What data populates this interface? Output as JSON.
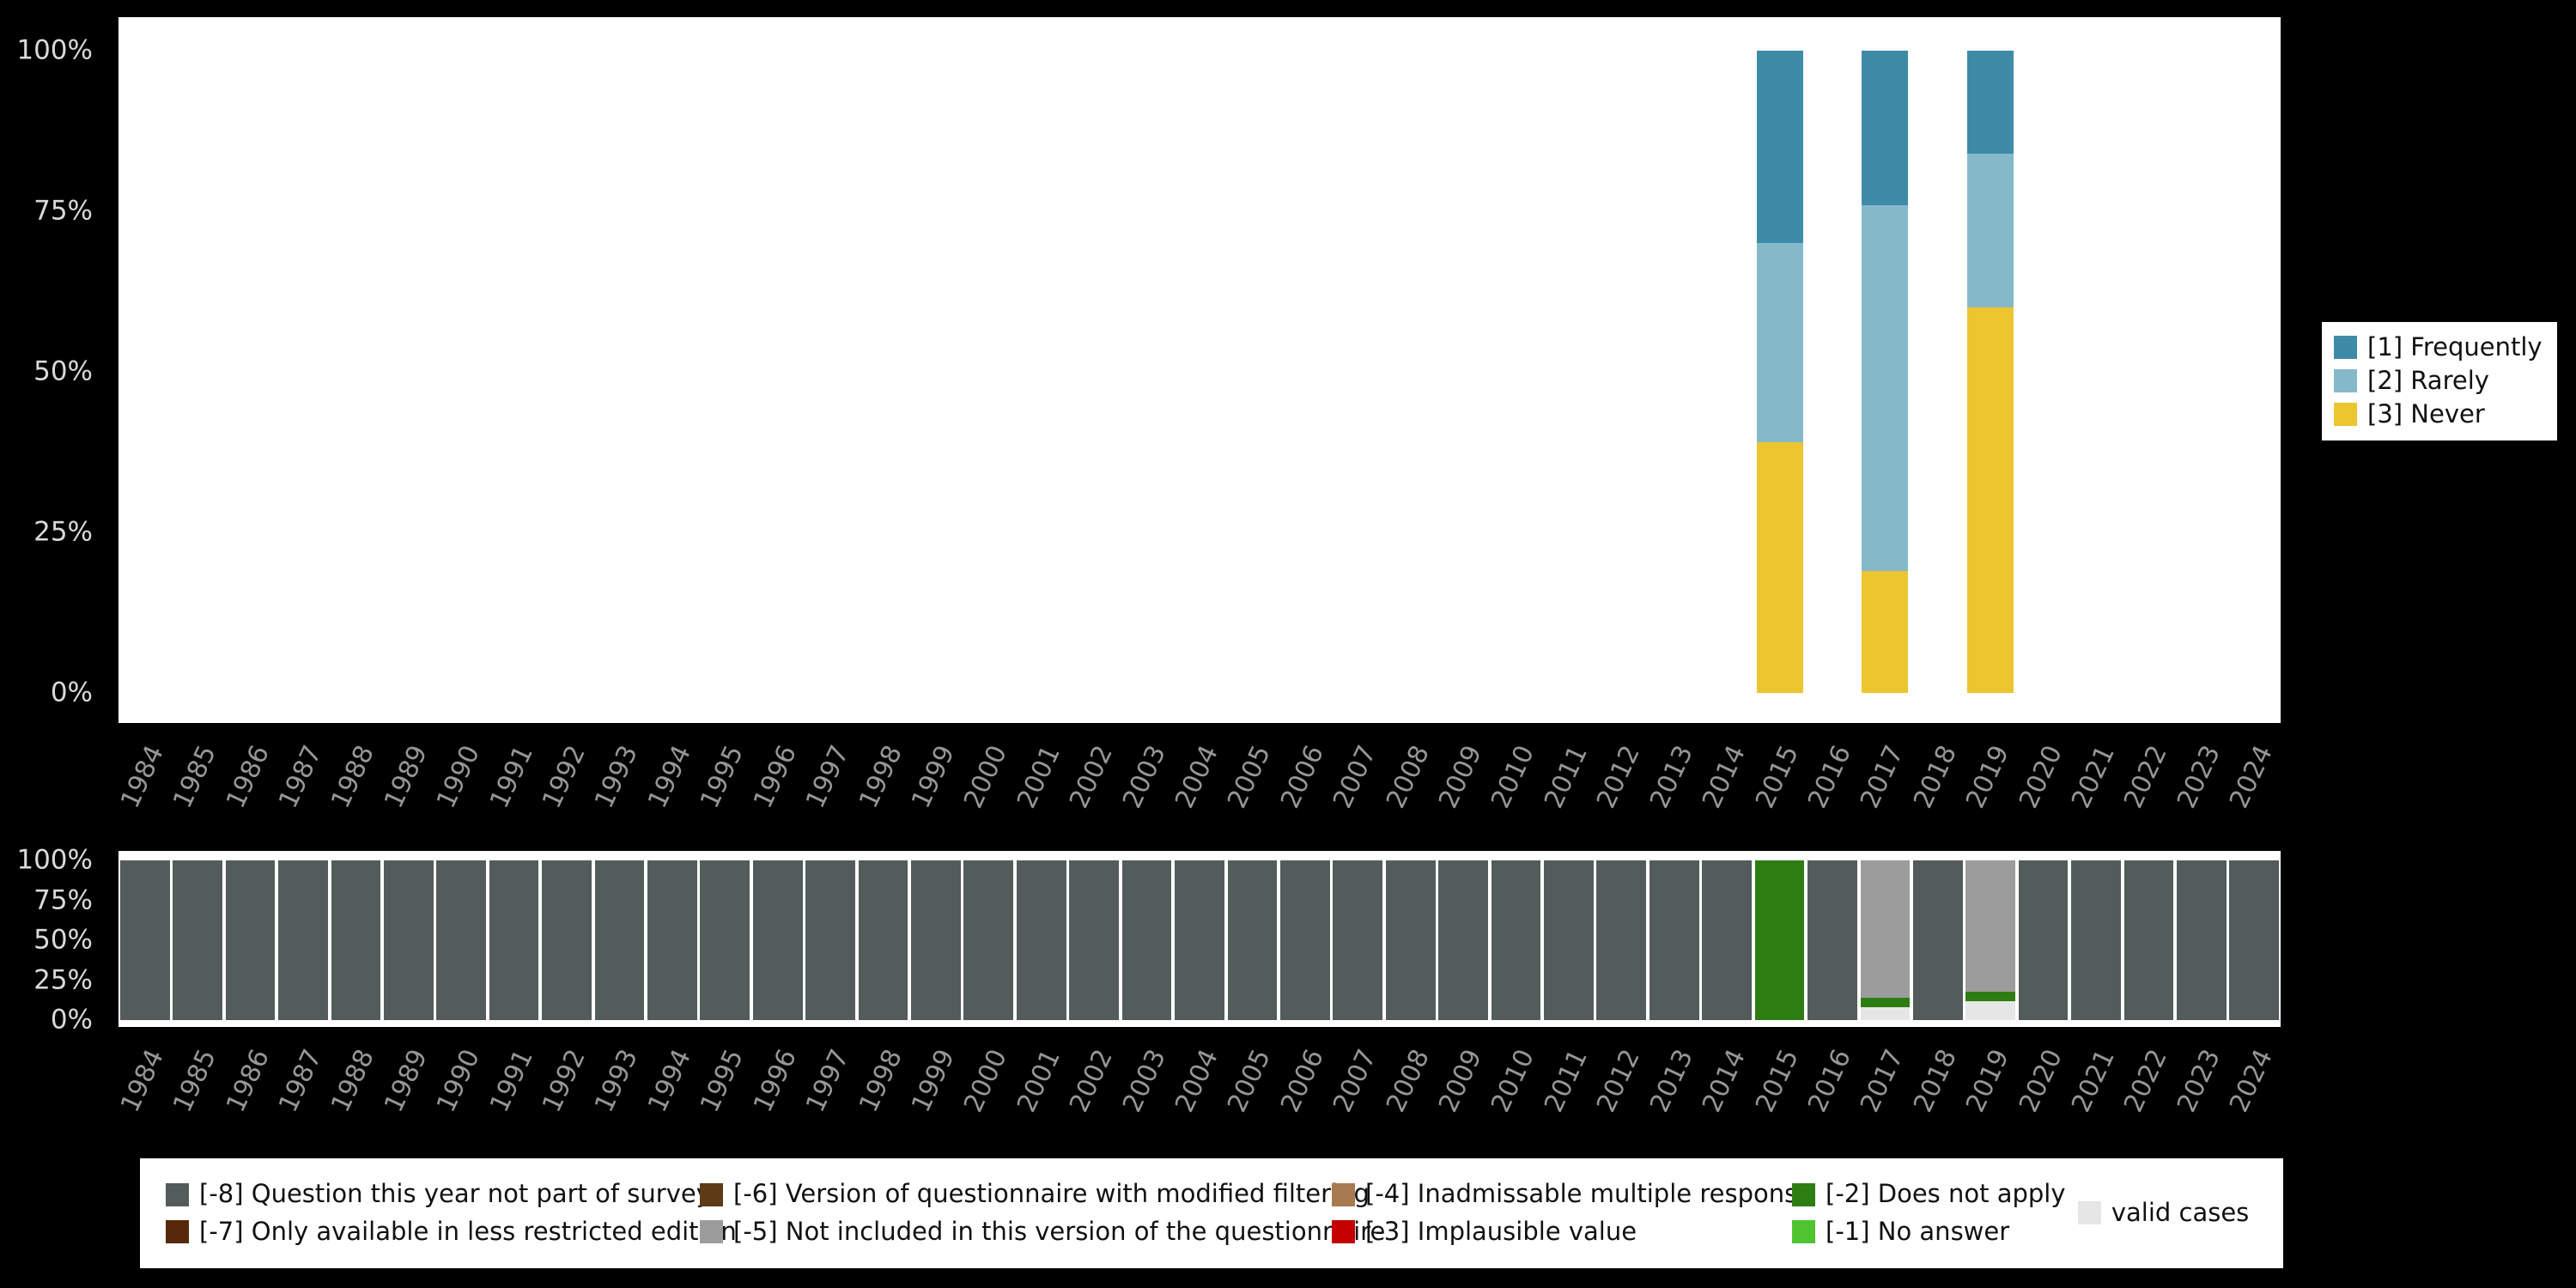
{
  "colors": {
    "page_background": "#000000",
    "plot_background": "#ffffff",
    "ytick_text": "#d9d9d9",
    "year_text": "#969696",
    "legend_background": "#ffffff",
    "legend_text": "#111111"
  },
  "chart_data": [
    {
      "id": "response-distribution",
      "type": "bar",
      "stacked": true,
      "unit": "%",
      "title": "",
      "xlabel": "",
      "ylabel": "",
      "ylim": [
        0,
        100
      ],
      "grid": false,
      "legend_position": "right",
      "yticks": [
        "100%",
        "75%",
        "50%",
        "25%",
        "0%"
      ],
      "categories": [
        "1984",
        "1985",
        "1986",
        "1987",
        "1988",
        "1989",
        "1990",
        "1991",
        "1992",
        "1993",
        "1994",
        "1995",
        "1996",
        "1997",
        "1998",
        "1999",
        "2000",
        "2001",
        "2002",
        "2003",
        "2004",
        "2005",
        "2006",
        "2007",
        "2008",
        "2009",
        "2010",
        "2011",
        "2012",
        "2013",
        "2014",
        "2015",
        "2016",
        "2017",
        "2018",
        "2019",
        "2020",
        "2021",
        "2022",
        "2023",
        "2024"
      ],
      "series": [
        {
          "name": "[1] Frequently",
          "color": "#3d8ba6",
          "values": {
            "2015": 30,
            "2017": 24,
            "2019": 16
          }
        },
        {
          "name": "[2] Rarely",
          "color": "#85b9c9",
          "values": {
            "2015": 31,
            "2017": 57,
            "2019": 24
          }
        },
        {
          "name": "[3] Never",
          "color": "#ecc52f",
          "values": {
            "2015": 39,
            "2017": 19,
            "2019": 60
          }
        }
      ]
    },
    {
      "id": "missing-values",
      "type": "bar",
      "stacked": true,
      "unit": "%",
      "title": "",
      "xlabel": "",
      "ylabel": "",
      "ylim": [
        0,
        100
      ],
      "grid": false,
      "legend_position": "bottom",
      "yticks": [
        "100%",
        "75%",
        "50%",
        "25%",
        "0%"
      ],
      "categories": [
        "1984",
        "1985",
        "1986",
        "1987",
        "1988",
        "1989",
        "1990",
        "1991",
        "1992",
        "1993",
        "1994",
        "1995",
        "1996",
        "1997",
        "1998",
        "1999",
        "2000",
        "2001",
        "2002",
        "2003",
        "2004",
        "2005",
        "2006",
        "2007",
        "2008",
        "2009",
        "2010",
        "2011",
        "2012",
        "2013",
        "2014",
        "2015",
        "2016",
        "2017",
        "2018",
        "2019",
        "2020",
        "2021",
        "2022",
        "2023",
        "2024"
      ],
      "series": [
        {
          "name": "[-8] Question this year not part of survey",
          "color": "#545c5b",
          "values": {
            "1984": 100,
            "1985": 100,
            "1986": 100,
            "1987": 100,
            "1988": 100,
            "1989": 100,
            "1990": 100,
            "1991": 100,
            "1992": 100,
            "1993": 100,
            "1994": 100,
            "1995": 100,
            "1996": 100,
            "1997": 100,
            "1998": 100,
            "1999": 100,
            "2000": 100,
            "2001": 100,
            "2002": 100,
            "2003": 100,
            "2004": 100,
            "2005": 100,
            "2006": 100,
            "2007": 100,
            "2008": 100,
            "2009": 100,
            "2010": 100,
            "2011": 100,
            "2012": 100,
            "2013": 100,
            "2014": 100,
            "2016": 100,
            "2018": 100,
            "2020": 100,
            "2021": 100,
            "2022": 100,
            "2023": 100,
            "2024": 100
          }
        },
        {
          "name": "[-7] Only available in less restricted edition",
          "color": "#55290a",
          "values": {}
        },
        {
          "name": "[-6] Version of questionnaire with modified filtering",
          "color": "#5e3a17",
          "values": {}
        },
        {
          "name": "[-5] Not included in this version of the questionnaire",
          "color": "#9c9c9c",
          "values": {
            "2017": 86,
            "2019": 82
          }
        },
        {
          "name": "[-4] Inadmissable multiple response",
          "color": "#a87a4f",
          "values": {}
        },
        {
          "name": "[-3] Implausible value",
          "color": "#c40000",
          "values": {}
        },
        {
          "name": "[-2] Does not apply",
          "color": "#2e7d12",
          "values": {
            "2015": 100,
            "2017": 6,
            "2019": 6
          }
        },
        {
          "name": "[-1] No answer",
          "color": "#4ec431",
          "values": {}
        },
        {
          "name": "valid cases",
          "color": "#e6e6e6",
          "values": {
            "2017": 8,
            "2019": 12
          }
        }
      ]
    }
  ]
}
